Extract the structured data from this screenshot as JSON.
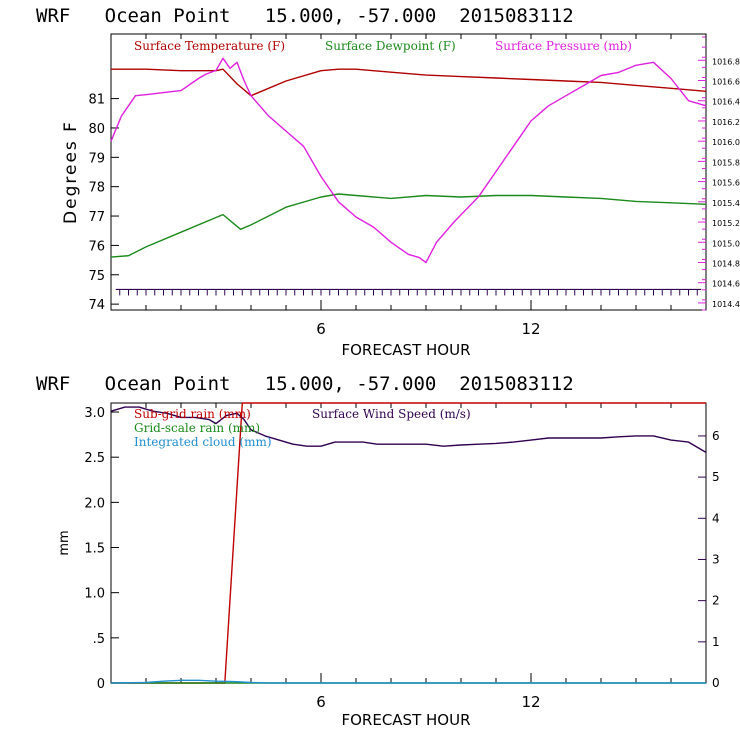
{
  "colors": {
    "temperature": "#b00000",
    "dewpoint": "#1a8a1a",
    "pressure": "#e020e0",
    "subgrid_rain": "#c00000",
    "gridscale_rain": "#1a8a1a",
    "cloud": "#1f8fd0",
    "wind": "#300050",
    "axis": "#000000"
  },
  "chart_data": [
    {
      "type": "line",
      "title": "WRF   Ocean Point   15.000, -57.000  2015083112",
      "xlabel": "FORECAST HOUR",
      "ylabel": "Degrees F",
      "xlim": [
        0,
        17
      ],
      "ylim": [
        73.8,
        83.2
      ],
      "y2lim": [
        1014.33,
        1017.06
      ],
      "xticks": [
        6,
        12
      ],
      "yticks": [
        74,
        75,
        76,
        77,
        78,
        79,
        80,
        81
      ],
      "y2ticks": [
        "1014.4",
        "1014.6",
        "1014.8",
        "1015.0",
        "1015.2",
        "1015.4",
        "1015.6",
        "1015.8",
        "1016.0",
        "1016.2",
        "1016.4",
        "1016.6",
        "1016.8"
      ],
      "grid": false,
      "legend": "top",
      "series": [
        {
          "name": "Surface Temperature (F)",
          "color_key": "temperature",
          "axis": "left",
          "x": [
            0,
            1,
            2,
            3,
            3.2,
            3.6,
            4,
            5,
            6,
            6.5,
            7,
            8,
            9,
            10,
            11,
            12,
            13,
            14,
            15,
            16,
            17
          ],
          "y": [
            82.0,
            82.0,
            81.95,
            81.95,
            82.0,
            81.5,
            81.1,
            81.6,
            81.95,
            82.0,
            82.0,
            81.9,
            81.8,
            81.75,
            81.7,
            81.65,
            81.6,
            81.55,
            81.45,
            81.35,
            81.25
          ]
        },
        {
          "name": "Surface Dewpoint (F)",
          "color_key": "dewpoint",
          "axis": "left",
          "x": [
            0,
            0.5,
            1,
            2,
            3,
            3.2,
            3.7,
            4,
            5,
            6,
            6.5,
            7,
            8,
            9,
            10,
            11,
            12,
            13,
            14,
            15,
            16,
            17
          ],
          "y": [
            75.6,
            75.65,
            75.95,
            76.45,
            76.95,
            77.05,
            76.55,
            76.7,
            77.3,
            77.65,
            77.75,
            77.7,
            77.6,
            77.7,
            77.65,
            77.7,
            77.7,
            77.65,
            77.6,
            77.5,
            77.45,
            77.4
          ],
          "markers_x": [
            0.25,
            0.5,
            0.75,
            1,
            1.25,
            1.5,
            1.75,
            2,
            2.25,
            2.5,
            2.75,
            3,
            3.25,
            3.5,
            3.75,
            4,
            4.25,
            4.5,
            4.75,
            5,
            5.25,
            5.5,
            5.75,
            6,
            6.25,
            6.5,
            6.75,
            7,
            7.25,
            7.5,
            7.75,
            8,
            8.25,
            8.5,
            8.75,
            9,
            9.25,
            9.5,
            9.75,
            10,
            10.25,
            10.5,
            10.75,
            11,
            11.25,
            11.5,
            11.75,
            12,
            12.25,
            12.5,
            12.75,
            13,
            13.25,
            13.5,
            13.75,
            14,
            14.25,
            14.5,
            14.75,
            15,
            15.25,
            15.5,
            15.75,
            16,
            16.25,
            16.5,
            16.75
          ],
          "markers_y": 74.5
        },
        {
          "name": "Surface Pressure (mb)",
          "color_key": "pressure",
          "axis": "right",
          "x": [
            0,
            0.3,
            0.7,
            1,
            1.5,
            2,
            2.5,
            2.7,
            3,
            3.2,
            3.4,
            3.6,
            3.8,
            4,
            4.5,
            5,
            5.5,
            6,
            6.5,
            7,
            7.5,
            8,
            8.5,
            8.8,
            9,
            9.3,
            9.8,
            10.5,
            11,
            11.5,
            12,
            12.5,
            13,
            13.5,
            14,
            14.5,
            15,
            15.5,
            16,
            16.5,
            17
          ],
          "y": [
            1016.0,
            1016.25,
            1016.45,
            1016.46,
            1016.48,
            1016.5,
            1016.62,
            1016.66,
            1016.7,
            1016.82,
            1016.72,
            1016.78,
            1016.6,
            1016.45,
            1016.25,
            1016.1,
            1015.95,
            1015.65,
            1015.4,
            1015.25,
            1015.15,
            1015.0,
            1014.88,
            1014.85,
            1014.8,
            1015.0,
            1015.2,
            1015.45,
            1015.7,
            1015.95,
            1016.2,
            1016.35,
            1016.45,
            1016.55,
            1016.65,
            1016.68,
            1016.75,
            1016.78,
            1016.62,
            1016.4,
            1016.35
          ]
        }
      ]
    },
    {
      "type": "line",
      "title": "WRF   Ocean Point   15.000, -57.000  2015083112",
      "xlabel": "FORECAST HOUR",
      "ylabel": "mm",
      "xlim": [
        0,
        17
      ],
      "ylim": [
        0,
        3.1
      ],
      "y2lim": [
        0,
        6.8
      ],
      "xticks": [
        6,
        12
      ],
      "yticks": [
        "0",
        ".5",
        "1.0",
        "1.5",
        "2.0",
        "2.5",
        "3.0"
      ],
      "ytick_values": [
        0,
        0.5,
        1.0,
        1.5,
        2.0,
        2.5,
        3.0
      ],
      "y2ticks": [
        0,
        1,
        2,
        3,
        4,
        5,
        6
      ],
      "grid": false,
      "legend": "top-left",
      "series": [
        {
          "name": "Sub-grid rain (mm)",
          "color_key": "subgrid_rain",
          "axis": "left",
          "x": [
            0,
            3.25,
            3.75,
            17
          ],
          "y": [
            0,
            0,
            3.1,
            3.1
          ]
        },
        {
          "name": "Grid-scale rain (mm)",
          "color_key": "gridscale_rain",
          "axis": "left",
          "x": [
            0,
            17
          ],
          "y": [
            0,
            0
          ]
        },
        {
          "name": "Integrated cloud (mm)",
          "color_key": "cloud",
          "axis": "left",
          "x": [
            0,
            1,
            1.5,
            2,
            2.5,
            3,
            3.5,
            4,
            4.5,
            17
          ],
          "y": [
            0,
            0.005,
            0.02,
            0.03,
            0.03,
            0.02,
            0.015,
            0.005,
            0,
            0
          ]
        },
        {
          "name": "Surface Wind Speed (m/s)",
          "color_key": "wind",
          "axis": "right",
          "x": [
            0,
            0.4,
            0.8,
            1.2,
            1.6,
            2,
            2.4,
            2.8,
            3,
            3.3,
            3.6,
            3.8,
            4,
            4.4,
            4.8,
            5.2,
            5.6,
            6,
            6.4,
            6.8,
            7.2,
            7.6,
            8,
            8.5,
            9,
            9.5,
            10,
            10.5,
            11,
            11.5,
            12,
            12.5,
            13,
            13.5,
            14,
            14.5,
            15,
            15.5,
            16,
            16.5,
            17
          ],
          "y": [
            6.6,
            6.7,
            6.7,
            6.6,
            6.55,
            6.45,
            6.45,
            6.4,
            6.3,
            6.5,
            6.55,
            6.4,
            6.15,
            6.0,
            5.9,
            5.8,
            5.75,
            5.75,
            5.85,
            5.85,
            5.85,
            5.8,
            5.8,
            5.8,
            5.8,
            5.75,
            5.78,
            5.8,
            5.82,
            5.85,
            5.9,
            5.95,
            5.95,
            5.95,
            5.95,
            5.98,
            6.0,
            6.0,
            5.9,
            5.85,
            5.6
          ]
        }
      ]
    }
  ]
}
